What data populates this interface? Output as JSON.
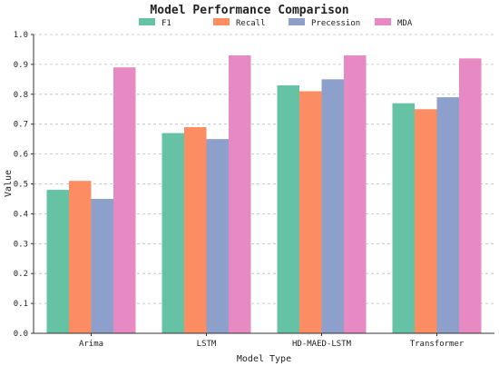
{
  "chart_data": {
    "type": "bar",
    "title": "Model Performance Comparison",
    "xlabel": "Model Type",
    "ylabel": "Value",
    "ylim": [
      0,
      1.0
    ],
    "yticks": [
      "0.0",
      "0.1",
      "0.2",
      "0.3",
      "0.4",
      "0.5",
      "0.6",
      "0.7",
      "0.8",
      "0.9",
      "1.0"
    ],
    "grid": true,
    "legend_position": "top",
    "categories": [
      "Arima",
      "LSTM",
      "HD-MAED-LSTM",
      "Transformer"
    ],
    "series": [
      {
        "name": "F1",
        "color": "#66c2a5",
        "values": [
          0.48,
          0.67,
          0.83,
          0.77
        ]
      },
      {
        "name": "Recall",
        "color": "#fc8d62",
        "values": [
          0.51,
          0.69,
          0.81,
          0.75
        ]
      },
      {
        "name": "Precession",
        "color": "#8da0cb",
        "values": [
          0.45,
          0.65,
          0.85,
          0.79
        ]
      },
      {
        "name": "MDA",
        "color": "#e78ac3",
        "values": [
          0.89,
          0.93,
          0.93,
          0.92
        ]
      }
    ]
  }
}
